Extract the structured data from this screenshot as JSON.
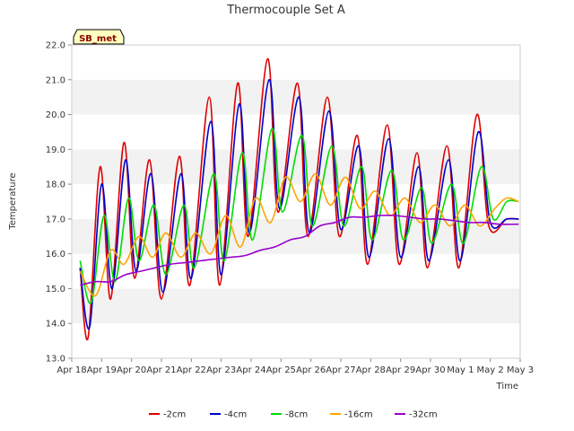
{
  "chart_data": {
    "type": "line",
    "title": "Thermocouple Set A",
    "xlabel": "Time",
    "ylabel": "Temperature",
    "badge": "SB_met",
    "ylim": [
      13.0,
      22.0
    ],
    "yticks": [
      "13.0",
      "14.0",
      "15.0",
      "16.0",
      "17.0",
      "18.0",
      "19.0",
      "20.0",
      "21.0",
      "22.0"
    ],
    "xlim": [
      0,
      15
    ],
    "xticks": [
      "Apr 18",
      "Apr 19",
      "Apr 20",
      "Apr 21",
      "Apr 22",
      "Apr 23",
      "Apr 24",
      "Apr 25",
      "Apr 26",
      "Apr 27",
      "Apr 28",
      "Apr 29",
      "Apr 30",
      "May 1",
      "May 2",
      "May 3"
    ],
    "grid": true,
    "legend_position": "bottom",
    "series": [
      {
        "name": "-2cm",
        "color": "#dd0000",
        "x": [
          0.28,
          0.55,
          0.95,
          1.3,
          1.75,
          2.1,
          2.6,
          3.0,
          3.6,
          3.95,
          4.6,
          4.95,
          5.55,
          5.9,
          6.55,
          6.9,
          7.55,
          7.9,
          8.55,
          8.95,
          9.55,
          9.9,
          10.55,
          10.95,
          11.55,
          11.9,
          12.55,
          12.95,
          13.55,
          13.95,
          14.55,
          14.95
        ],
        "y": [
          15.6,
          13.6,
          18.5,
          14.7,
          19.2,
          15.3,
          18.7,
          14.7,
          18.8,
          15.1,
          20.5,
          15.1,
          20.9,
          16.5,
          21.6,
          17.2,
          20.9,
          16.5,
          20.5,
          16.5,
          19.4,
          15.7,
          19.7,
          15.7,
          18.9,
          15.6,
          19.1,
          15.6,
          20.0,
          16.8,
          17.0,
          17.0
        ]
      },
      {
        "name": "-4cm",
        "color": "#0000cc",
        "x": [
          0.28,
          0.6,
          1.0,
          1.35,
          1.8,
          2.15,
          2.65,
          3.05,
          3.65,
          4.0,
          4.65,
          5.0,
          5.6,
          5.95,
          6.6,
          6.95,
          7.6,
          7.95,
          8.6,
          9.0,
          9.6,
          9.95,
          10.6,
          11.0,
          11.6,
          11.95,
          12.6,
          13.0,
          13.6,
          14.0,
          14.55,
          14.95
        ],
        "y": [
          15.6,
          13.9,
          18.0,
          15.0,
          18.7,
          15.5,
          18.3,
          14.9,
          18.3,
          15.3,
          19.8,
          15.4,
          20.3,
          16.6,
          21.0,
          17.3,
          20.5,
          16.6,
          20.1,
          16.7,
          19.1,
          15.9,
          19.3,
          15.9,
          18.5,
          15.8,
          18.7,
          15.8,
          19.5,
          16.9,
          17.0,
          17.0
        ]
      },
      {
        "name": "-8cm",
        "color": "#00dd00",
        "x": [
          0.28,
          0.65,
          1.08,
          1.45,
          1.9,
          2.25,
          2.75,
          3.15,
          3.75,
          4.1,
          4.75,
          5.1,
          5.7,
          6.05,
          6.7,
          7.05,
          7.7,
          8.05,
          8.7,
          9.1,
          9.7,
          10.05,
          10.7,
          11.1,
          11.7,
          12.05,
          12.7,
          13.1,
          13.7,
          14.1,
          14.55,
          14.95
        ],
        "y": [
          15.8,
          14.6,
          17.1,
          15.2,
          17.6,
          15.8,
          17.4,
          15.4,
          17.4,
          15.6,
          18.3,
          15.8,
          18.9,
          16.4,
          19.6,
          17.2,
          19.4,
          16.8,
          19.1,
          16.8,
          18.5,
          16.4,
          18.4,
          16.4,
          17.9,
          16.3,
          18.0,
          16.3,
          18.5,
          17.0,
          17.5,
          17.5
        ]
      },
      {
        "name": "-16cm",
        "color": "#ffa500",
        "x": [
          0.28,
          0.8,
          1.3,
          1.75,
          2.25,
          2.7,
          3.15,
          3.65,
          4.15,
          4.65,
          5.15,
          5.65,
          6.15,
          6.65,
          7.15,
          7.65,
          8.15,
          8.65,
          9.15,
          9.65,
          10.15,
          10.65,
          11.15,
          11.65,
          12.15,
          12.65,
          13.15,
          13.65,
          14.15,
          14.55,
          14.95
        ],
        "y": [
          15.5,
          14.8,
          16.1,
          15.7,
          16.5,
          15.9,
          16.6,
          15.9,
          16.6,
          16.0,
          17.1,
          16.2,
          17.6,
          16.9,
          18.2,
          17.5,
          18.3,
          17.4,
          18.2,
          17.3,
          17.8,
          17.1,
          17.6,
          16.9,
          17.4,
          16.8,
          17.4,
          16.8,
          17.3,
          17.6,
          17.5
        ]
      },
      {
        "name": "-32cm",
        "color": "#9900cc",
        "x": [
          0.28,
          0.8,
          1.3,
          1.8,
          2.3,
          2.8,
          3.3,
          3.8,
          4.3,
          4.8,
          5.3,
          5.8,
          6.3,
          6.8,
          7.3,
          7.8,
          8.3,
          8.8,
          9.3,
          9.8,
          10.3,
          10.8,
          11.3,
          11.8,
          12.3,
          12.8,
          13.3,
          13.8,
          14.3,
          14.95
        ],
        "y": [
          15.1,
          15.2,
          15.2,
          15.4,
          15.5,
          15.6,
          15.7,
          15.75,
          15.8,
          15.85,
          15.9,
          15.95,
          16.1,
          16.2,
          16.4,
          16.5,
          16.8,
          16.9,
          17.05,
          17.05,
          17.1,
          17.1,
          17.05,
          17.0,
          17.0,
          16.95,
          16.9,
          16.9,
          16.85,
          16.85
        ]
      }
    ]
  }
}
